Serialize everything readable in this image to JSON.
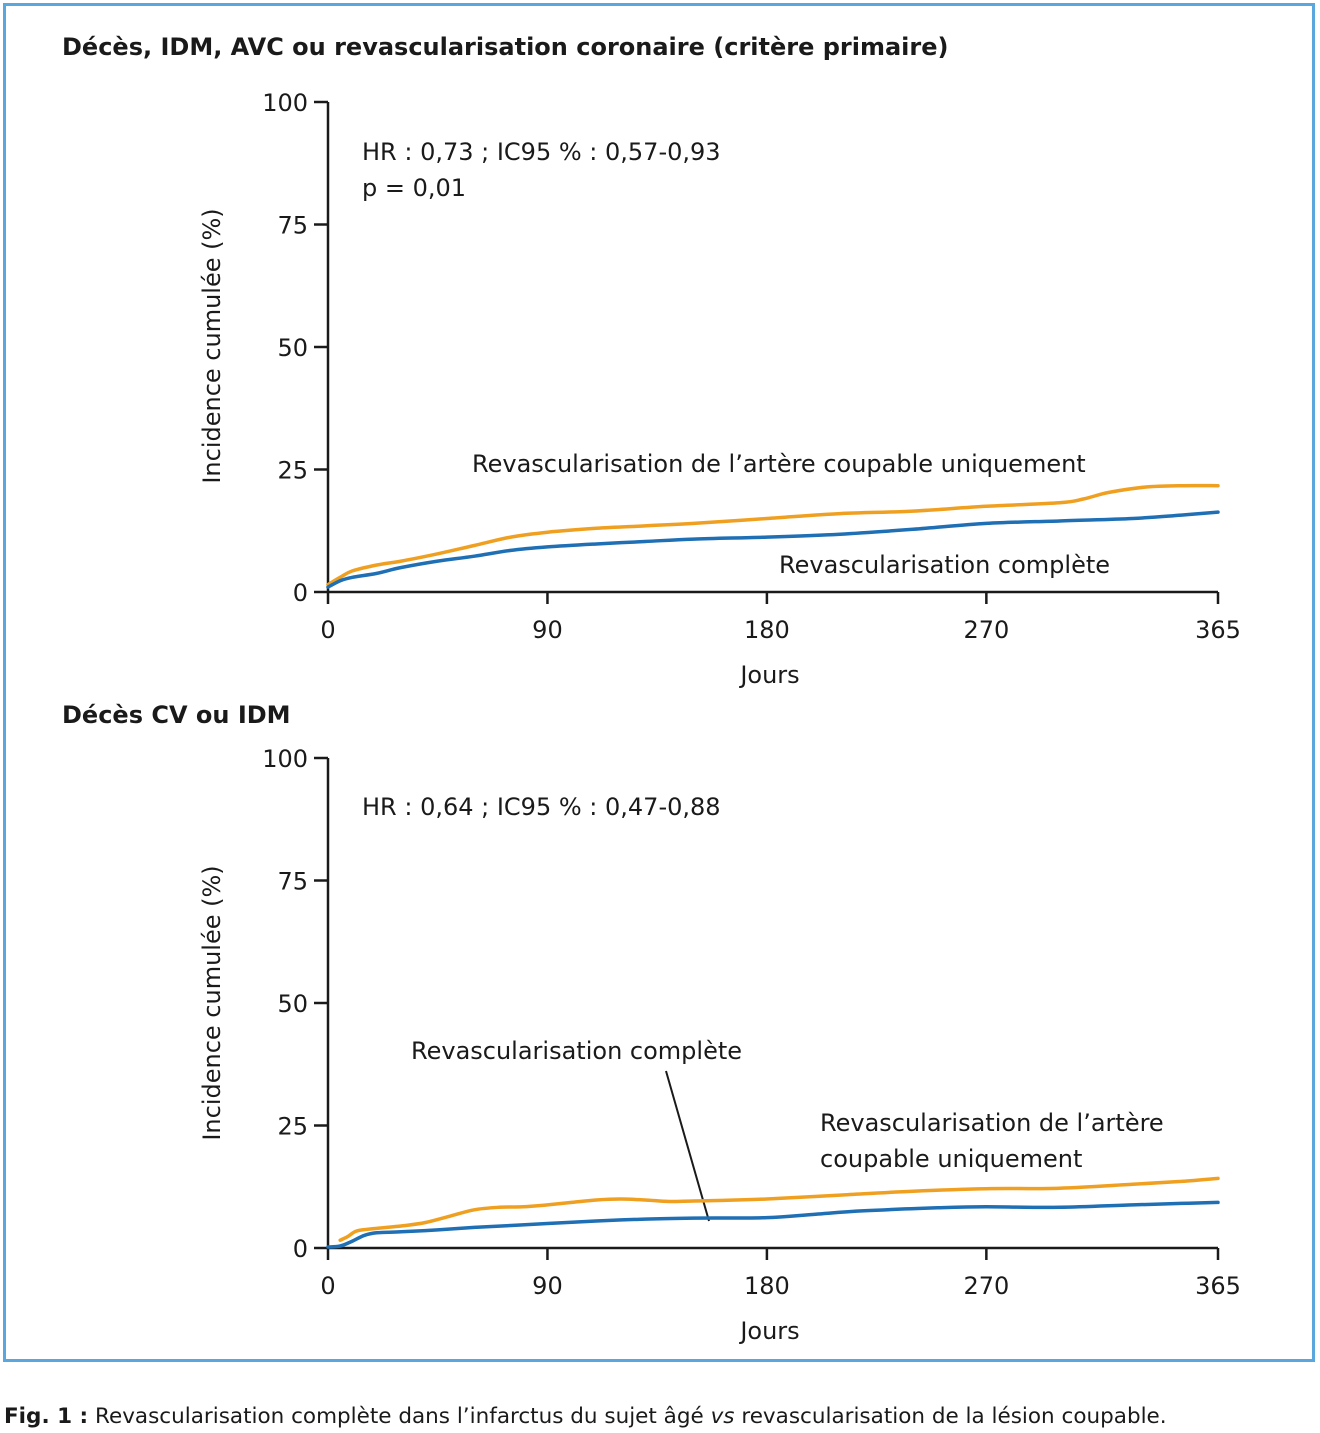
{
  "colors": {
    "frame": "#5aa7dd",
    "orange": "#f0a020",
    "blue": "#1f6fb5",
    "axis": "#1a1a1a"
  },
  "caption": {
    "fig_label": "Fig. 1 :",
    "text_before": " Revascularisation complète dans l’infarctus du sujet âgé ",
    "vs": "vs",
    "text_after": " revascularisation de la lésion coupable."
  },
  "chart_data": [
    {
      "type": "line",
      "title": "Décès, IDM, AVC ou revascularisation coronaire (critère primaire)",
      "xlabel": "Jours",
      "ylabel": "Incidence cumulée (%)",
      "xlim": [
        0,
        365
      ],
      "ylim": [
        0,
        100
      ],
      "xticks": [
        "0",
        "90",
        "180",
        "270",
        "365"
      ],
      "yticks": [
        "0",
        "25",
        "50",
        "75",
        "100"
      ],
      "stats": [
        "HR : 0,73 ; IC95 % : 0,57-0,93",
        "p = 0,01"
      ],
      "series": [
        {
          "name": "Revascularisation de l’artère coupable uniquement",
          "color": "orange",
          "x": [
            0,
            5,
            10,
            20,
            30,
            45,
            60,
            75,
            90,
            110,
            130,
            150,
            180,
            210,
            240,
            270,
            300,
            310,
            320,
            335,
            350,
            365
          ],
          "y": [
            1.5,
            3,
            4.3,
            5.5,
            6.3,
            7.8,
            9.5,
            11.2,
            12.2,
            13,
            13.5,
            14,
            15,
            16,
            16.5,
            17.5,
            18.2,
            19,
            20.3,
            21.4,
            21.7,
            21.7
          ]
        },
        {
          "name": "Revascularisation complète",
          "color": "blue",
          "x": [
            0,
            5,
            10,
            20,
            30,
            45,
            60,
            75,
            90,
            110,
            130,
            150,
            180,
            210,
            240,
            270,
            300,
            330,
            350,
            365
          ],
          "y": [
            1,
            2.3,
            3,
            3.8,
            5,
            6.3,
            7.3,
            8.5,
            9.2,
            9.8,
            10.3,
            10.8,
            11.2,
            11.8,
            12.8,
            14,
            14.5,
            15,
            15.7,
            16.3
          ]
        }
      ]
    },
    {
      "type": "line",
      "title": "Décès CV ou IDM",
      "xlabel": "Jours",
      "ylabel": "Incidence cumulée (%)",
      "xlim": [
        0,
        365
      ],
      "ylim": [
        0,
        100
      ],
      "xticks": [
        "0",
        "90",
        "180",
        "270",
        "365"
      ],
      "yticks": [
        "0",
        "25",
        "50",
        "75",
        "100"
      ],
      "stats": [
        "HR : 0,64 ; IC95 % : 0,47-0,88"
      ],
      "series": [
        {
          "name": "Revascularisation de l’artère coupable uniquement",
          "label_lines": [
            "Revascularisation de l’artère",
            "coupable uniquement"
          ],
          "color": "orange",
          "x": [
            5,
            8,
            12,
            20,
            30,
            40,
            50,
            60,
            70,
            80,
            90,
            100,
            110,
            120,
            130,
            140,
            150,
            160,
            180,
            210,
            240,
            270,
            300,
            330,
            350,
            365
          ],
          "y": [
            1.6,
            2.3,
            3.5,
            4,
            4.5,
            5.2,
            6.5,
            7.8,
            8.3,
            8.4,
            8.8,
            9.3,
            9.8,
            10,
            9.8,
            9.5,
            9.6,
            9.7,
            10,
            10.8,
            11.6,
            12.1,
            12.2,
            13,
            13.6,
            14.2
          ]
        },
        {
          "name": "Revascularisation complète",
          "label_lines": [
            "Revascularisation complète"
          ],
          "color": "blue",
          "x": [
            0,
            5,
            10,
            15,
            20,
            30,
            45,
            60,
            75,
            90,
            110,
            130,
            150,
            180,
            200,
            220,
            250,
            270,
            300,
            330,
            350,
            365
          ],
          "y": [
            0.2,
            0.4,
            1.4,
            2.6,
            3.1,
            3.3,
            3.7,
            4.2,
            4.6,
            5,
            5.5,
            5.9,
            6.1,
            6.2,
            6.9,
            7.6,
            8.2,
            8.4,
            8.3,
            8.8,
            9.1,
            9.3
          ]
        }
      ]
    }
  ]
}
